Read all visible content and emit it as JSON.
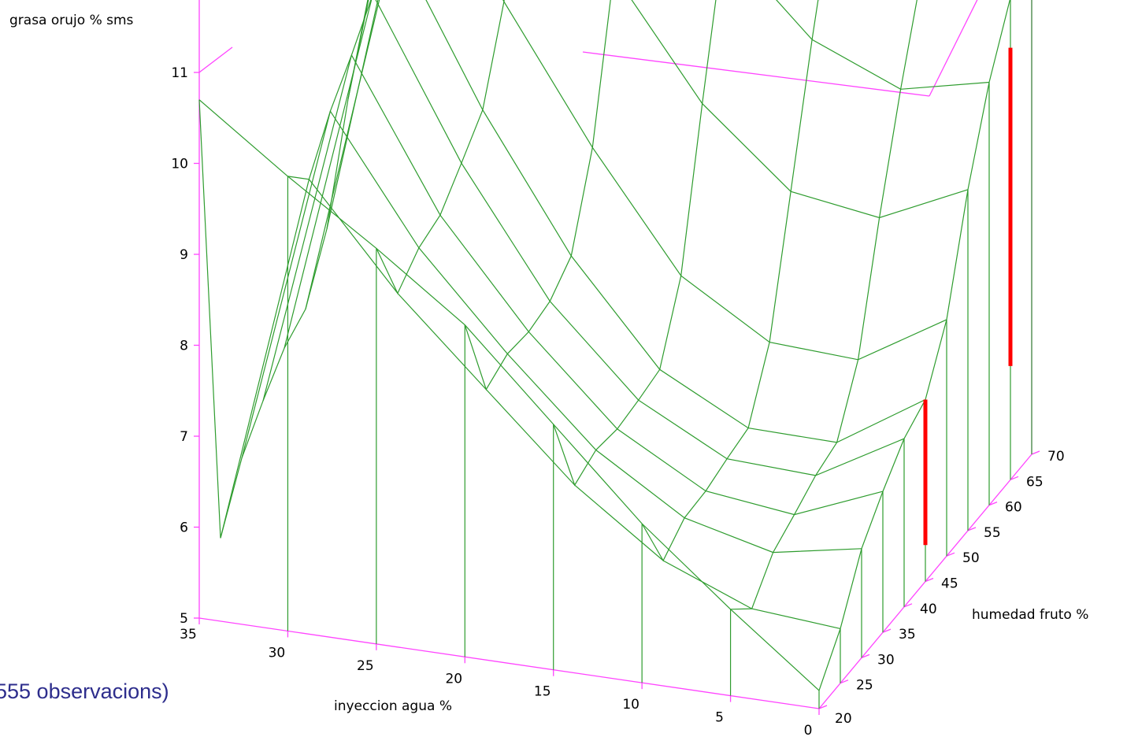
{
  "chart_data": {
    "type": "surface",
    "zlabel": "grasa orujo % sms",
    "xlabel": "inyeccion agua %",
    "ylabel": "humedad fruto %",
    "zlim": [
      5,
      11
    ],
    "z_ticks": [
      5,
      6,
      7,
      8,
      9,
      10,
      11
    ],
    "x_ticks": [
      35,
      30,
      25,
      20,
      15,
      10,
      5,
      0
    ],
    "y_ticks": [
      20,
      25,
      30,
      35,
      40,
      45,
      50,
      55,
      60,
      65,
      70
    ],
    "z_tick_labels": [
      "5",
      "6",
      "7",
      "8",
      "9",
      "10",
      "11"
    ],
    "x_tick_labels": [
      "35",
      "30",
      "25",
      "20",
      "15",
      "10",
      "5",
      "0"
    ],
    "y_tick_labels": [
      "20",
      "25",
      "30",
      "35",
      "40",
      "45",
      "50",
      "55",
      "60",
      "65",
      "70"
    ],
    "x_front_edge": [
      35,
      30,
      25,
      20,
      15,
      10,
      5,
      0
    ],
    "z_front_edge": [
      10.7,
      10.0,
      9.35,
      8.65,
      7.7,
      6.75,
      5.95,
      5.2
    ],
    "y_right_edge": [
      20,
      25,
      30,
      35,
      40,
      45,
      50,
      55,
      60,
      65,
      70
    ],
    "z_right_edge": [
      5.2,
      5.6,
      6.2,
      6.55,
      6.85,
      7.0,
      7.6,
      8.75,
      9.65,
      10.3,
      10.55
    ],
    "highlight_bars": [
      {
        "x": 0,
        "y": 45,
        "z_low": 5.4,
        "z_high": 7.0
      },
      {
        "x": 0,
        "y": 65,
        "z_low": 6.25,
        "z_high": 9.75
      }
    ],
    "colors": {
      "axes": "#ff44ff",
      "surface": "#2e9c2e",
      "highlight": "#ff0000",
      "note": "#2d2d8c"
    }
  },
  "note": "555 observacions)"
}
